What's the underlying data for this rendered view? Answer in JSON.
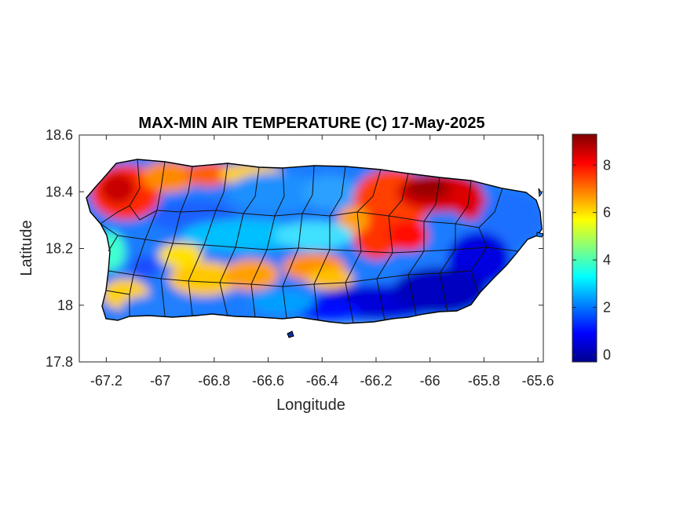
{
  "chart_data": {
    "type": "heatmap",
    "title": "MAX-MIN AIR TEMPERATURE (C) 17-May-2025",
    "xlabel": "Longitude",
    "ylabel": "Latitude",
    "xlim": [
      -67.3,
      -65.58
    ],
    "ylim": [
      17.8,
      18.6
    ],
    "xticks": [
      -67.2,
      -67,
      -66.8,
      -66.6,
      -66.4,
      -66.2,
      -66,
      -65.8,
      -65.6
    ],
    "xtick_labels": [
      "-67.2",
      "-67",
      "-66.8",
      "-66.6",
      "-66.4",
      "-66.2",
      "-66",
      "-65.8",
      "-65.6"
    ],
    "yticks": [
      17.8,
      18,
      18.2,
      18.4,
      18.6
    ],
    "ytick_labels": [
      "17.8",
      "18",
      "18.2",
      "18.4",
      "18.6"
    ],
    "colorbar": {
      "colormap": "jet",
      "range": [
        -0.3,
        9.3
      ],
      "ticks": [
        0,
        2,
        4,
        6,
        8
      ],
      "tick_labels": [
        "0",
        "2",
        "4",
        "6",
        "8"
      ]
    },
    "grid": false,
    "approximate_field": [
      {
        "lon": -67.1,
        "lat": 18.4,
        "value": 8.2
      },
      {
        "lon": -66.75,
        "lat": 18.44,
        "value": 7.0
      },
      {
        "lon": -67.0,
        "lat": 18.28,
        "value": 2.5
      },
      {
        "lon": -66.5,
        "lat": 18.38,
        "value": 2.0
      },
      {
        "lon": -66.4,
        "lat": 18.2,
        "value": 2.5
      },
      {
        "lon": -66.25,
        "lat": 18.3,
        "value": 6.5
      },
      {
        "lon": -66.0,
        "lat": 18.4,
        "value": 8.5
      },
      {
        "lon": -66.2,
        "lat": 18.18,
        "value": 7.0
      },
      {
        "lon": -65.75,
        "lat": 18.3,
        "value": 2.2
      },
      {
        "lon": -66.0,
        "lat": 18.05,
        "value": 0.5
      },
      {
        "lon": -66.4,
        "lat": 18.0,
        "value": 1.0
      },
      {
        "lon": -66.8,
        "lat": 18.08,
        "value": 5.5
      },
      {
        "lon": -67.1,
        "lat": 18.08,
        "value": 4.0
      }
    ]
  }
}
